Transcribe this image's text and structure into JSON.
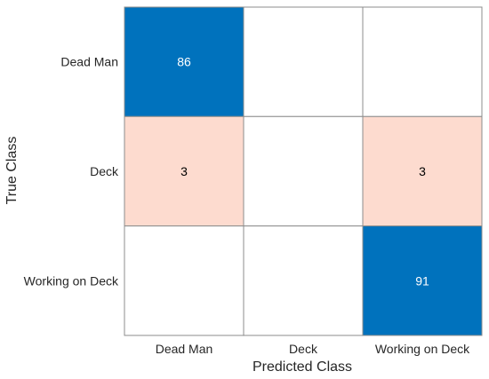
{
  "chart_data": {
    "type": "heatmap",
    "subtype": "confusion-matrix",
    "xlabel": "Predicted Class",
    "ylabel": "True Class",
    "classes": [
      "Dead Man",
      "Deck",
      "Working on Deck"
    ],
    "matrix": [
      [
        86,
        null,
        null
      ],
      [
        3,
        null,
        3
      ],
      [
        null,
        null,
        91
      ]
    ],
    "grid": true,
    "colors": {
      "diagonal": "#0072BD",
      "off_diagonal": "#FDDBCF",
      "empty": "#FFFFFF",
      "text_on_dark": "#FFFFFF",
      "text_on_light": "#000000",
      "grid_line": "#8C8C8C"
    }
  }
}
